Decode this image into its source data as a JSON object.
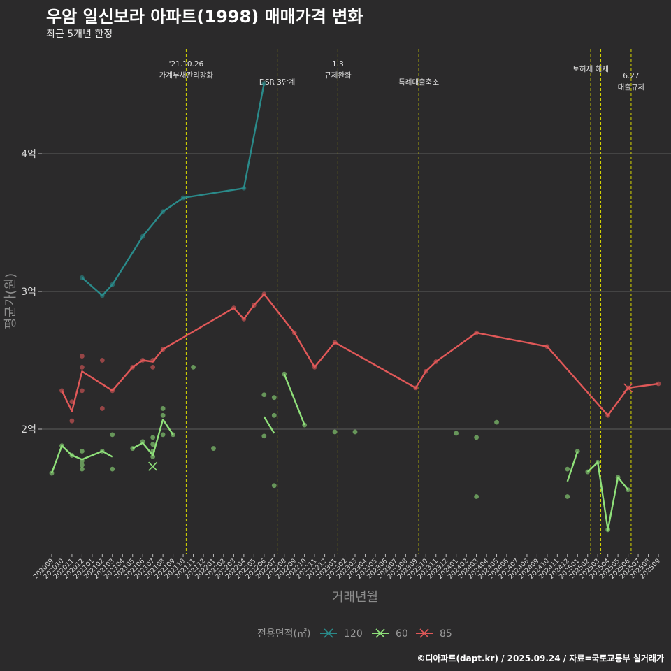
{
  "title": "우암 일신보라 아파트(1998) 매매가격 변화",
  "subtitle": "최근 5개년 한정",
  "caption": "©디아파트(dapt.kr) / 2025.09.24 / 자료=국토교통부 실거래가",
  "colors": {
    "background": "#2b2a2b",
    "grid": "#5e5e5e",
    "event_line": "#d8d800",
    "s120": "#2a8a8a",
    "s60": "#8fe07a",
    "s85": "#e05858"
  },
  "chart_data": {
    "type": "line",
    "title": "우암 일신보라 아파트(1998) 매매가격 변화",
    "subtitle": "최근 5개년 한정",
    "xlabel": "거래년월",
    "ylabel": "평균가(원)",
    "ylim": [
      1.1,
      4.9
    ],
    "yticks": [
      {
        "value": 2,
        "label": "2억"
      },
      {
        "value": 3,
        "label": "3억"
      },
      {
        "value": 4,
        "label": "4억"
      }
    ],
    "x_ticks": [
      "202009",
      "202010",
      "202011",
      "202012",
      "202101",
      "202102",
      "202103",
      "202104",
      "202105",
      "202106",
      "202107",
      "202108",
      "202109",
      "202110",
      "202111",
      "202112",
      "202201",
      "202202",
      "202203",
      "202204",
      "202205",
      "202206",
      "202207",
      "202208",
      "202209",
      "202210",
      "202211",
      "202212",
      "202301",
      "202302",
      "202303",
      "202304",
      "202305",
      "202306",
      "202307",
      "202308",
      "202309",
      "202310",
      "202311",
      "202312",
      "202401",
      "202402",
      "202403",
      "202404",
      "202405",
      "202406",
      "202407",
      "202408",
      "202409",
      "202410",
      "202411",
      "202412",
      "202501",
      "202502",
      "202503",
      "202504",
      "202505",
      "202506",
      "202507",
      "202508",
      "202509"
    ],
    "events": [
      {
        "x": 13.3,
        "label": "'21.10.26 가계부채관리강화",
        "lines": [
          "'21.10.26",
          "가계부채관리강화"
        ]
      },
      {
        "x": 22.3,
        "label": "DSR 3단계",
        "lines": [
          "DSR 3단계"
        ]
      },
      {
        "x": 28.3,
        "label": "1.3 규제완화",
        "lines": [
          "1.3",
          "규제완화"
        ]
      },
      {
        "x": 36.3,
        "label": "특례대출축소",
        "lines": [
          "특례대출축소"
        ]
      },
      {
        "x": 53.3,
        "label": "토허제 해제",
        "lines": [
          "토허제 해제"
        ]
      },
      {
        "x": 54.3,
        "label": "",
        "lines": []
      },
      {
        "x": 57.3,
        "label": "6.27 대출규제",
        "lines": [
          "6.27",
          "대출규제"
        ]
      }
    ],
    "legend": {
      "title": "전용면적(㎡)",
      "entries": [
        "120",
        "60",
        "85"
      ]
    },
    "series": [
      {
        "name": "120",
        "color": "#2a8a8a",
        "segments": [
          [
            [
              3,
              3.1
            ],
            [
              5,
              2.97
            ],
            [
              6,
              3.05
            ],
            [
              9,
              3.4
            ],
            [
              11,
              3.58
            ],
            [
              13,
              3.68
            ],
            [
              19,
              3.75
            ],
            [
              21,
              4.51
            ]
          ]
        ],
        "points": [
          [
            3,
            3.1
          ],
          [
            5,
            2.97
          ],
          [
            6,
            3.05
          ],
          [
            9,
            3.4
          ],
          [
            11,
            3.58
          ],
          [
            13,
            3.68
          ],
          [
            19,
            3.75
          ],
          [
            21,
            4.51
          ]
        ]
      },
      {
        "name": "60",
        "color": "#8fe07a",
        "segments": [
          [
            [
              0,
              1.68
            ],
            [
              1,
              1.88
            ],
            [
              2,
              1.81
            ],
            [
              3,
              1.78
            ],
            [
              5,
              1.84
            ],
            [
              6,
              1.8
            ]
          ],
          [
            [
              8,
              1.86
            ],
            [
              9,
              1.9
            ],
            [
              10,
              1.81
            ],
            [
              11,
              2.07
            ],
            [
              12,
              1.96
            ]
          ],
          [
            [
              21,
              2.09
            ],
            [
              22,
              1.97
            ]
          ],
          [
            [
              23,
              2.4
            ],
            [
              25,
              2.03
            ]
          ],
          [
            [
              51,
              1.62
            ],
            [
              52,
              1.84
            ]
          ],
          [
            [
              53,
              1.69
            ],
            [
              54,
              1.76
            ],
            [
              55,
              1.27
            ],
            [
              56,
              1.65
            ],
            [
              57,
              1.56
            ]
          ]
        ],
        "points": [
          [
            0,
            1.68
          ],
          [
            1,
            1.88
          ],
          [
            2,
            1.81
          ],
          [
            3,
            1.84
          ],
          [
            3,
            1.77
          ],
          [
            3,
            1.74
          ],
          [
            3,
            1.71
          ],
          [
            5,
            1.84
          ],
          [
            6,
            1.96
          ],
          [
            6,
            1.71
          ],
          [
            8,
            1.86
          ],
          [
            9,
            1.91
          ],
          [
            10,
            1.94
          ],
          [
            10,
            1.89
          ],
          [
            10,
            1.84
          ],
          [
            10,
            1.8
          ],
          [
            11,
            2.15
          ],
          [
            11,
            2.1
          ],
          [
            11,
            1.96
          ],
          [
            12,
            1.96
          ],
          [
            14,
            2.45
          ],
          [
            16,
            1.86
          ],
          [
            21,
            2.25
          ],
          [
            21,
            1.95
          ],
          [
            22,
            2.23
          ],
          [
            22,
            2.1
          ],
          [
            22,
            1.59
          ],
          [
            23,
            2.4
          ],
          [
            25,
            2.03
          ],
          [
            28,
            1.98
          ],
          [
            30,
            1.98
          ],
          [
            40,
            1.97
          ],
          [
            42,
            1.94
          ],
          [
            42,
            1.51
          ],
          [
            44,
            2.05
          ],
          [
            51,
            1.71
          ],
          [
            51,
            1.51
          ],
          [
            52,
            1.84
          ],
          [
            53,
            1.69
          ],
          [
            54,
            1.76
          ],
          [
            55,
            1.27
          ],
          [
            56,
            1.65
          ],
          [
            57,
            1.56
          ]
        ],
        "cross": [
          [
            10,
            1.73
          ]
        ]
      },
      {
        "name": "85",
        "color": "#e05858",
        "segments": [
          [
            [
              1,
              2.28
            ],
            [
              2,
              2.13
            ],
            [
              3,
              2.42
            ],
            [
              6,
              2.28
            ],
            [
              8,
              2.45
            ],
            [
              9,
              2.5
            ],
            [
              10,
              2.49
            ],
            [
              11,
              2.58
            ],
            [
              18,
              2.88
            ],
            [
              19,
              2.8
            ],
            [
              20,
              2.9
            ],
            [
              21,
              2.98
            ],
            [
              24,
              2.7
            ],
            [
              26,
              2.45
            ],
            [
              28,
              2.63
            ],
            [
              36,
              2.3
            ],
            [
              37,
              2.42
            ],
            [
              38,
              2.49
            ],
            [
              42,
              2.7
            ],
            [
              49,
              2.6
            ],
            [
              55,
              2.1
            ],
            [
              57,
              2.3
            ],
            [
              60,
              2.33
            ]
          ]
        ],
        "points": [
          [
            1,
            2.28
          ],
          [
            2,
            2.2
          ],
          [
            2,
            2.06
          ],
          [
            3,
            2.53
          ],
          [
            3,
            2.45
          ],
          [
            3,
            2.28
          ],
          [
            5,
            2.5
          ],
          [
            5,
            2.15
          ],
          [
            6,
            2.28
          ],
          [
            8,
            2.45
          ],
          [
            9,
            2.5
          ],
          [
            10,
            2.5
          ],
          [
            10,
            2.45
          ],
          [
            11,
            2.58
          ],
          [
            18,
            2.88
          ],
          [
            19,
            2.8
          ],
          [
            20,
            2.9
          ],
          [
            21,
            2.98
          ],
          [
            24,
            2.7
          ],
          [
            26,
            2.45
          ],
          [
            28,
            2.63
          ],
          [
            36,
            2.3
          ],
          [
            37,
            2.42
          ],
          [
            38,
            2.49
          ],
          [
            42,
            2.7
          ],
          [
            49,
            2.6
          ],
          [
            55,
            2.1
          ],
          [
            57,
            2.3
          ],
          [
            60,
            2.33
          ]
        ],
        "cross": [
          [
            57,
            2.3
          ]
        ]
      }
    ]
  }
}
